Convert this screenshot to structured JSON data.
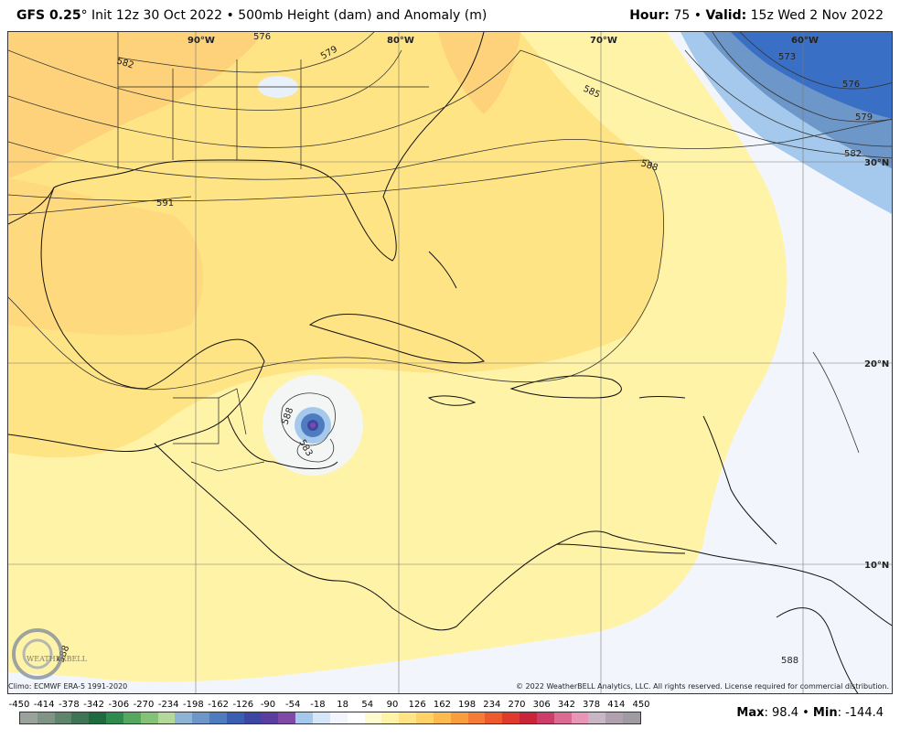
{
  "header": {
    "model": "GFS 0.25",
    "degree": "°",
    "init": " Init 12z 30 Oct 2022",
    "sep": " • ",
    "product": "500mb Height (dam) and Anomaly (m)",
    "hour_label": "Hour:",
    "hour_value": " 75",
    "valid_label": "Valid:",
    "valid_value": " 15z Wed 2 Nov 2022"
  },
  "map": {
    "longitude_labels": [
      "90°W",
      "80°W",
      "70°W",
      "60°W"
    ],
    "latitude_labels": [
      "30°N",
      "20°N",
      "10°N"
    ],
    "contour_labels": [
      "576",
      "579",
      "582",
      "585",
      "588",
      "591",
      "573",
      "576",
      "579",
      "582",
      "588",
      "588",
      "583",
      "588"
    ],
    "logo_text": "WEATHERBELL"
  },
  "footer": {
    "climo": "Climo: ECMWF ERA-5 1991-2020",
    "copyright": "© 2022 WeatherBELL Analytics, LLC. All rights reserved. License required for commercial distribution."
  },
  "legend": {
    "ticks": [
      "-450",
      "-414",
      "-378",
      "-342",
      "-306",
      "-270",
      "-234",
      "-198",
      "-162",
      "-126",
      "-90",
      "-54",
      "-18",
      "18",
      "54",
      "90",
      "126",
      "162",
      "198",
      "234",
      "270",
      "306",
      "342",
      "378",
      "414",
      "450"
    ],
    "colors": [
      "#9aa39b",
      "#7f9485",
      "#60846c",
      "#3f7554",
      "#1f6b3f",
      "#2f8a4d",
      "#56a860",
      "#84c277",
      "#b3d89a",
      "#8fb3d4",
      "#6d97c9",
      "#4f7cbf",
      "#3a5fb2",
      "#3d46a3",
      "#5a3d9e",
      "#7f4aa6",
      "#a5c9ec",
      "#d4e6f7",
      "#f2f6fc",
      "#ffffff",
      "#fffbd0",
      "#fff3a8",
      "#ffe485",
      "#ffd166",
      "#fdba4f",
      "#f99d3e",
      "#f47c34",
      "#ec5a2e",
      "#df3a2c",
      "#c92438",
      "#ce3c6a",
      "#dd6a92",
      "#e896b6",
      "#c8b6c6",
      "#b0a0b0",
      "#a09aa3"
    ],
    "max_label": "Max",
    "max_value": ": 98.4",
    "min_sep": " • ",
    "min_label": "Min",
    "min_value": ": -144.4"
  },
  "colors": {
    "warm_light": "#fff3a8",
    "warm_mid": "#ffe485",
    "warm_strong": "#fdd27a",
    "cold_light": "#a5c9ec",
    "cold_mid": "#6d97c9",
    "cold_strong": "#3a6fc6",
    "neutral": "#f2f6fc"
  }
}
